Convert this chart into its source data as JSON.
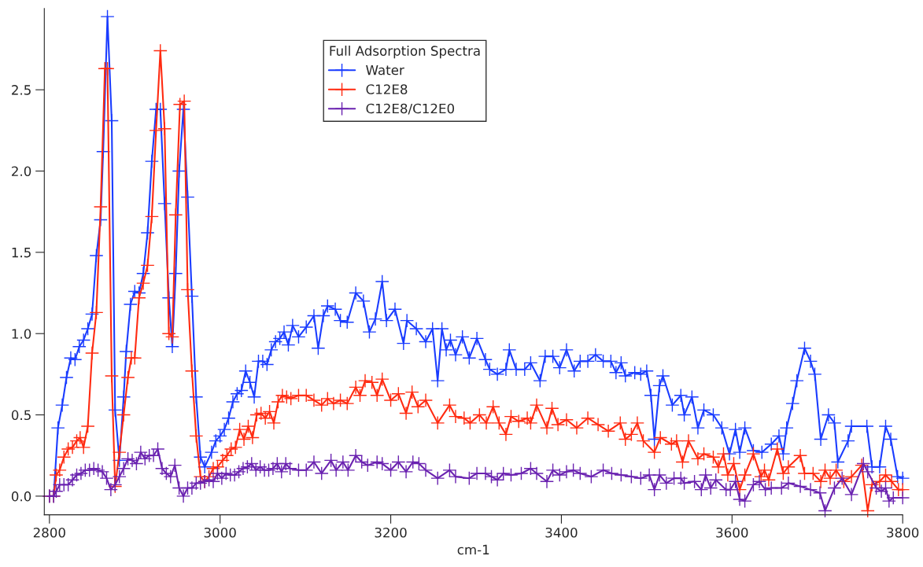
{
  "chart_data": {
    "type": "line",
    "xlabel": "cm-1",
    "legend_title": "Full Adsorption Spectra",
    "legend": "top",
    "marker": "cross",
    "line_style": "solid",
    "grid": false,
    "xlim": [
      2794,
      3800
    ],
    "ylim": [
      -0.115,
      3.0
    ],
    "xticks": [
      2800,
      3000,
      3200,
      3400,
      3600,
      3800
    ],
    "yticks": [
      {
        "value": 0,
        "label": "0.0"
      },
      {
        "value": 0.5,
        "label": "0.5"
      },
      {
        "value": 1,
        "label": "1.0"
      },
      {
        "value": 1.5,
        "label": "1.5"
      },
      {
        "value": 2,
        "label": "2.0"
      },
      {
        "value": 2.5,
        "label": "2.5"
      }
    ],
    "series": [
      {
        "name": "Water",
        "color": "#1a3cff",
        "x": [
          2800,
          2805,
          2810,
          2815,
          2820,
          2825,
          2830,
          2835,
          2840,
          2845,
          2850,
          2855,
          2860,
          2863,
          2868,
          2873,
          2877,
          2882,
          2887,
          2890,
          2895,
          2900,
          2905,
          2910,
          2915,
          2920,
          2925,
          2930,
          2935,
          2940,
          2944,
          2948,
          2952,
          2957,
          2962,
          2967,
          2972,
          2977,
          2982,
          2990,
          2995,
          3000,
          3005,
          3010,
          3015,
          3020,
          3025,
          3030,
          3035,
          3040,
          3045,
          3050,
          3055,
          3060,
          3065,
          3070,
          3075,
          3080,
          3085,
          3092,
          3101,
          3110,
          3115,
          3121,
          3126,
          3135,
          3141,
          3149,
          3159,
          3168,
          3175,
          3182,
          3190,
          3195,
          3205,
          3215,
          3219,
          3230,
          3241,
          3249,
          3255,
          3260,
          3265,
          3270,
          3276,
          3284,
          3292,
          3301,
          3311,
          3316,
          3325,
          3335,
          3339,
          3347,
          3357,
          3364,
          3375,
          3381,
          3390,
          3398,
          3406,
          3415,
          3422,
          3431,
          3440,
          3449,
          3458,
          3464,
          3470,
          3475,
          3486,
          3493,
          3500,
          3505,
          3509,
          3515,
          3519,
          3530,
          3540,
          3544,
          3553,
          3560,
          3567,
          3578,
          3588,
          3597,
          3604,
          3609,
          3615,
          3625,
          3635,
          3646,
          3655,
          3660,
          3664,
          3671,
          3676,
          3685,
          3692,
          3697,
          3704,
          3713,
          3720,
          3724,
          3736,
          3740,
          3758,
          3764,
          3773,
          3780,
          3786,
          3794,
          3800
        ],
        "values": [
          0,
          0,
          0.42,
          0.56,
          0.73,
          0.85,
          0.84,
          0.92,
          0.96,
          1.03,
          1.12,
          1.48,
          1.7,
          2.12,
          2.95,
          2.31,
          0.53,
          0.22,
          0.61,
          0.89,
          1.18,
          1.26,
          1.25,
          1.37,
          1.62,
          2.06,
          2.38,
          2.38,
          1.8,
          1.22,
          0.92,
          1.37,
          2.0,
          2.38,
          1.84,
          1.23,
          0.61,
          0.24,
          0.18,
          0.27,
          0.34,
          0.37,
          0.41,
          0.48,
          0.58,
          0.63,
          0.65,
          0.77,
          0.7,
          0.61,
          0.83,
          0.83,
          0.81,
          0.9,
          0.95,
          0.97,
          1.01,
          0.93,
          1.05,
          0.98,
          1.04,
          1.11,
          0.91,
          1.11,
          1.17,
          1.15,
          1.08,
          1.07,
          1.25,
          1.2,
          1.01,
          1.09,
          1.32,
          1.08,
          1.15,
          0.94,
          1.08,
          1.03,
          0.95,
          1.03,
          0.71,
          1.03,
          0.9,
          0.96,
          0.87,
          0.98,
          0.85,
          0.97,
          0.84,
          0.78,
          0.75,
          0.78,
          0.9,
          0.78,
          0.78,
          0.82,
          0.71,
          0.86,
          0.86,
          0.79,
          0.9,
          0.77,
          0.83,
          0.83,
          0.87,
          0.83,
          0.83,
          0.76,
          0.82,
          0.74,
          0.76,
          0.75,
          0.77,
          0.62,
          0.35,
          0.68,
          0.74,
          0.56,
          0.62,
          0.5,
          0.61,
          0.42,
          0.53,
          0.5,
          0.42,
          0.26,
          0.41,
          0.27,
          0.42,
          0.28,
          0.27,
          0.32,
          0.37,
          0.26,
          0.42,
          0.57,
          0.71,
          0.91,
          0.83,
          0.75,
          0.35,
          0.5,
          0.45,
          0.21,
          0.34,
          0.43,
          0.43,
          0.18,
          0.18,
          0.43,
          0.35,
          0.12,
          0.11
        ]
      },
      {
        "name": "C12E8",
        "color": "#ff2a10",
        "x": [
          2800,
          2805,
          2808,
          2812,
          2817,
          2822,
          2827,
          2832,
          2836,
          2840,
          2845,
          2850,
          2855,
          2860,
          2865,
          2868,
          2873,
          2877,
          2882,
          2887,
          2892,
          2896,
          2900,
          2905,
          2910,
          2915,
          2920,
          2925,
          2930,
          2935,
          2940,
          2944,
          2948,
          2953,
          2958,
          2962,
          2967,
          2972,
          2977,
          2982,
          2987,
          2992,
          2997,
          3003,
          3008,
          3013,
          3018,
          3023,
          3028,
          3033,
          3038,
          3043,
          3048,
          3053,
          3058,
          3063,
          3068,
          3073,
          3078,
          3083,
          3092,
          3101,
          3110,
          3119,
          3126,
          3133,
          3141,
          3149,
          3159,
          3164,
          3170,
          3178,
          3184,
          3190,
          3200,
          3209,
          3218,
          3225,
          3232,
          3241,
          3255,
          3269,
          3276,
          3286,
          3293,
          3304,
          3312,
          3320,
          3327,
          3335,
          3341,
          3350,
          3360,
          3364,
          3371,
          3383,
          3389,
          3396,
          3406,
          3418,
          3431,
          3443,
          3455,
          3469,
          3475,
          3482,
          3489,
          3496,
          3509,
          3516,
          3529,
          3535,
          3542,
          3549,
          3560,
          3567,
          3578,
          3584,
          3590,
          3595,
          3602,
          3609,
          3615,
          3625,
          3634,
          3638,
          3643,
          3653,
          3660,
          3666,
          3680,
          3685,
          3695,
          3704,
          3709,
          3715,
          3722,
          3731,
          3740,
          3752,
          3759,
          3764,
          3773,
          3780,
          3787,
          3795,
          3800
        ],
        "values": [
          0,
          0,
          0.13,
          0.16,
          0.24,
          0.29,
          0.3,
          0.34,
          0.36,
          0.3,
          0.43,
          0.88,
          1.13,
          1.78,
          2.63,
          2.63,
          0.74,
          0.06,
          0.27,
          0.5,
          0.73,
          0.85,
          0.85,
          1.22,
          1.31,
          1.42,
          1.72,
          2.25,
          2.74,
          2.26,
          1.0,
          0.98,
          1.73,
          2.41,
          2.43,
          1.27,
          0.77,
          0.37,
          0.12,
          0.09,
          0.12,
          0.17,
          0.18,
          0.22,
          0.25,
          0.29,
          0.3,
          0.41,
          0.35,
          0.43,
          0.36,
          0.5,
          0.51,
          0.48,
          0.52,
          0.45,
          0.58,
          0.62,
          0.61,
          0.6,
          0.62,
          0.62,
          0.59,
          0.56,
          0.6,
          0.57,
          0.59,
          0.57,
          0.67,
          0.62,
          0.71,
          0.7,
          0.62,
          0.72,
          0.59,
          0.63,
          0.51,
          0.64,
          0.55,
          0.59,
          0.45,
          0.56,
          0.49,
          0.48,
          0.45,
          0.5,
          0.45,
          0.55,
          0.45,
          0.38,
          0.49,
          0.46,
          0.48,
          0.45,
          0.56,
          0.42,
          0.54,
          0.44,
          0.47,
          0.42,
          0.48,
          0.44,
          0.4,
          0.45,
          0.35,
          0.38,
          0.45,
          0.34,
          0.27,
          0.36,
          0.32,
          0.34,
          0.21,
          0.34,
          0.23,
          0.26,
          0.24,
          0.18,
          0.26,
          0.13,
          0.2,
          0.04,
          0.13,
          0.26,
          0.12,
          0.16,
          0.1,
          0.29,
          0.14,
          0.18,
          0.25,
          0.14,
          0.14,
          0.09,
          0.16,
          0.11,
          0.16,
          0.09,
          0.12,
          0.19,
          -0.09,
          0.07,
          0.09,
          0.13,
          0.09,
          0.04,
          0.04
        ]
      },
      {
        "name": "C12E8/C12E0",
        "color": "#6a22b0",
        "x": [
          2800,
          2805,
          2808,
          2812,
          2817,
          2822,
          2827,
          2832,
          2837,
          2842,
          2847,
          2852,
          2857,
          2862,
          2867,
          2872,
          2877,
          2882,
          2887,
          2892,
          2897,
          2902,
          2907,
          2912,
          2917,
          2922,
          2927,
          2932,
          2937,
          2942,
          2947,
          2952,
          2957,
          2962,
          2967,
          2972,
          2977,
          2982,
          2987,
          2992,
          2997,
          3002,
          3007,
          3012,
          3017,
          3022,
          3027,
          3032,
          3037,
          3042,
          3047,
          3052,
          3057,
          3062,
          3067,
          3072,
          3077,
          3082,
          3092,
          3101,
          3110,
          3119,
          3130,
          3136,
          3144,
          3150,
          3159,
          3166,
          3173,
          3184,
          3190,
          3200,
          3209,
          3218,
          3226,
          3233,
          3241,
          3255,
          3269,
          3276,
          3292,
          3301,
          3311,
          3318,
          3325,
          3332,
          3341,
          3353,
          3364,
          3371,
          3383,
          3390,
          3398,
          3406,
          3414,
          3422,
          3435,
          3449,
          3459,
          3470,
          3482,
          3493,
          3503,
          3509,
          3515,
          3523,
          3532,
          3540,
          3544,
          3556,
          3564,
          3569,
          3575,
          3581,
          3593,
          3598,
          3604,
          3609,
          3615,
          3625,
          3632,
          3639,
          3646,
          3658,
          3666,
          3680,
          3692,
          3703,
          3709,
          3720,
          3729,
          3740,
          3754,
          3759,
          3769,
          3775,
          3780,
          3784,
          3789,
          3800
        ],
        "values": [
          0,
          0,
          0.03,
          0.07,
          0.07,
          0.07,
          0.1,
          0.13,
          0.14,
          0.16,
          0.16,
          0.17,
          0.16,
          0.15,
          0.11,
          0.04,
          0.07,
          0.12,
          0.17,
          0.23,
          0.22,
          0.2,
          0.27,
          0.23,
          0.25,
          0.25,
          0.29,
          0.17,
          0.14,
          0.12,
          0.19,
          0.05,
          0.0,
          0.05,
          0.05,
          0.08,
          0.08,
          0.09,
          0.1,
          0.09,
          0.14,
          0.11,
          0.14,
          0.13,
          0.13,
          0.15,
          0.17,
          0.18,
          0.2,
          0.16,
          0.18,
          0.16,
          0.16,
          0.17,
          0.2,
          0.15,
          0.2,
          0.17,
          0.16,
          0.16,
          0.21,
          0.14,
          0.22,
          0.16,
          0.21,
          0.16,
          0.25,
          0.21,
          0.19,
          0.21,
          0.2,
          0.16,
          0.21,
          0.15,
          0.21,
          0.2,
          0.16,
          0.11,
          0.16,
          0.12,
          0.11,
          0.14,
          0.14,
          0.12,
          0.1,
          0.14,
          0.13,
          0.14,
          0.17,
          0.14,
          0.09,
          0.16,
          0.13,
          0.15,
          0.16,
          0.14,
          0.12,
          0.16,
          0.14,
          0.13,
          0.12,
          0.11,
          0.13,
          0.04,
          0.13,
          0.08,
          0.11,
          0.11,
          0.08,
          0.09,
          0.04,
          0.13,
          0.05,
          0.1,
          0.04,
          0.04,
          0.09,
          -0.02,
          -0.03,
          0.07,
          0.09,
          0.04,
          0.05,
          0.05,
          0.08,
          0.06,
          0.04,
          0.02,
          -0.09,
          0.05,
          0.11,
          0.01,
          0.2,
          0.15,
          0.05,
          0.03,
          0.05,
          -0.03,
          -0.01,
          -0.01
        ]
      }
    ]
  }
}
